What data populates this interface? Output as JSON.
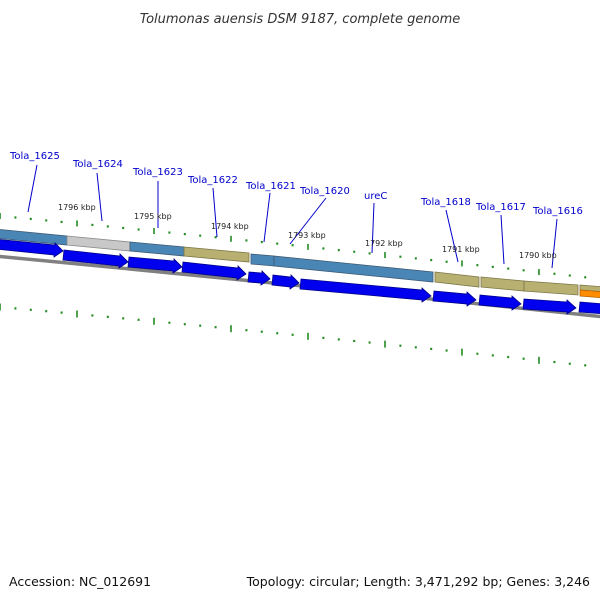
{
  "title": "Tolumonas auensis DSM 9187, complete genome",
  "footer": {
    "accession": "Accession: NC_012691",
    "summary": "Topology: circular; Length: 3,471,292 bp; Genes: 3,246"
  },
  "genes": [
    {
      "name": "Tola_1625"
    },
    {
      "name": "Tola_1624"
    },
    {
      "name": "Tola_1623"
    },
    {
      "name": "Tola_1622"
    },
    {
      "name": "Tola_1621"
    },
    {
      "name": "Tola_1620"
    },
    {
      "name": "ureC"
    },
    {
      "name": "Tola_1618"
    },
    {
      "name": "Tola_1617"
    },
    {
      "name": "Tola_1616"
    }
  ],
  "scale_labels": [
    "1796 kbp",
    "1795 kbp",
    "1794 kbp",
    "1793 kbp",
    "1792 kbp",
    "1791 kbp",
    "1790 kbp"
  ],
  "colors": {
    "gene_arrow": "#0000ee",
    "label_line": "#0000cc",
    "tick": "#228b22",
    "backbone": "#808080",
    "cog_blue": "#4a86b5",
    "cog_gray": "#c8c8c8",
    "cog_olive": "#b8b070",
    "cog_orange": "#ff8c00"
  }
}
